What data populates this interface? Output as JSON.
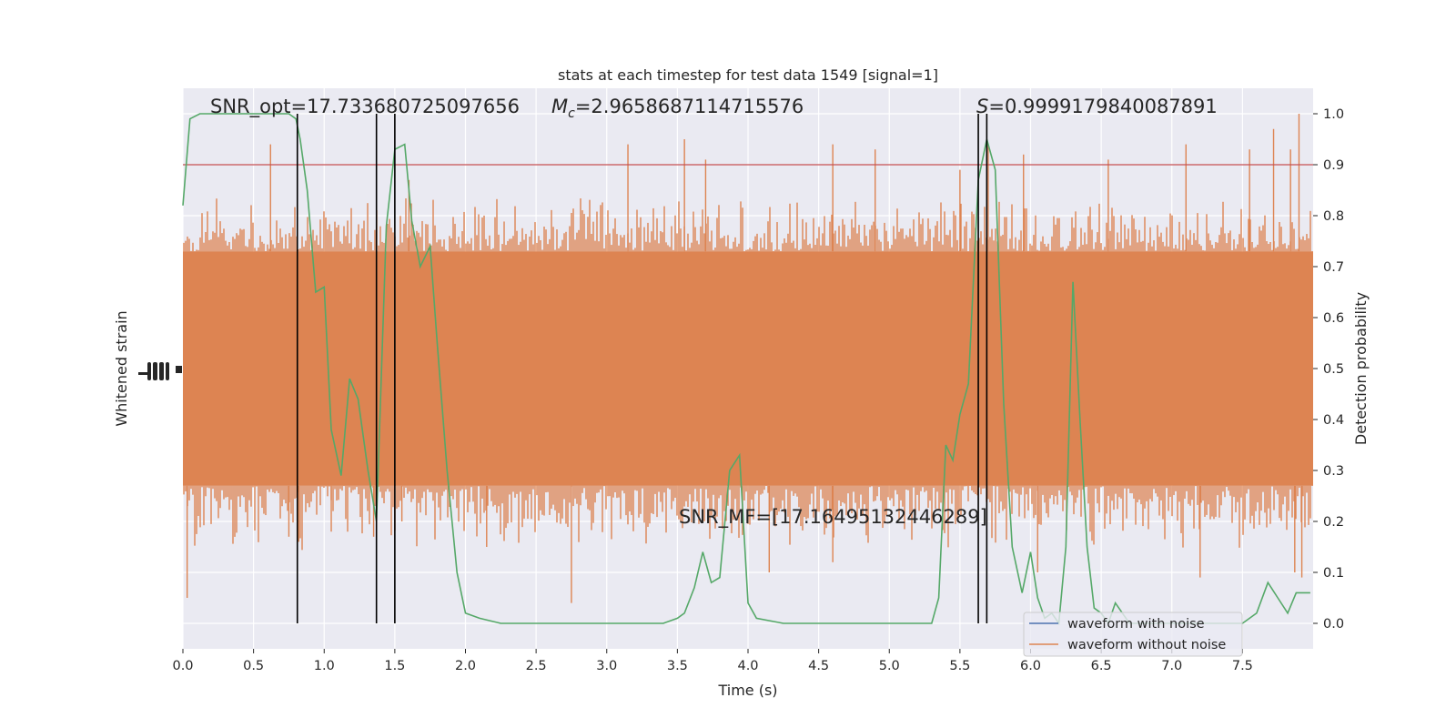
{
  "chart_data": {
    "type": "line",
    "title": "stats at each timestep for test data 1549 [signal=1]",
    "xlabel": "Time (s)",
    "ylabel_left": "Whitened strain",
    "ylabel_right": "Detection probability",
    "xlim": [
      0.0,
      8.0
    ],
    "ylim_right": [
      -0.05,
      1.05
    ],
    "x_ticks": [
      "0.0",
      "0.5",
      "1.0",
      "1.5",
      "2.0",
      "2.5",
      "3.0",
      "3.5",
      "4.0",
      "4.5",
      "5.0",
      "5.5",
      "6.0",
      "6.5",
      "7.0",
      "7.5"
    ],
    "y_ticks_right": [
      "0.0",
      "0.1",
      "0.2",
      "0.3",
      "0.4",
      "0.5",
      "0.6",
      "0.7",
      "0.8",
      "0.9",
      "1.0"
    ],
    "grid": true,
    "legend_position": "lower-right",
    "annotations": {
      "snr_opt": "SNR_opt=17.733680725097656",
      "mc_symbol": "M",
      "mc_sub": "c",
      "mc_value": "=2.9658687114715576",
      "s_symbol": "S",
      "s_value": "=0.9999179840087891",
      "snr_mf": "SNR_MF=[17.16495132446289]"
    },
    "threshold": 0.9,
    "vlines": [
      0.81,
      1.37,
      1.5,
      5.63,
      5.69
    ],
    "series": [
      {
        "name": "waveform with noise",
        "color": "#4c72b0",
        "axis": "left",
        "note_visual": "hidden behind orange trace"
      },
      {
        "name": "waveform without noise",
        "color": "#dd8452",
        "axis": "left",
        "band_upper": 0.73,
        "band_lower": 0.27,
        "spikes": [
          {
            "x": 0.03,
            "lo": 0.05
          },
          {
            "x": 0.62,
            "hi": 0.94
          },
          {
            "x": 0.75,
            "lo": 0.17
          },
          {
            "x": 0.82,
            "lo": 0.16
          },
          {
            "x": 1.05,
            "lo": 0.18
          },
          {
            "x": 1.35,
            "lo": 0.17
          },
          {
            "x": 1.55,
            "lo": 0.2
          },
          {
            "x": 1.6,
            "hi": 0.87
          },
          {
            "x": 2.15,
            "lo": 0.15
          },
          {
            "x": 2.75,
            "lo": 0.04
          },
          {
            "x": 3.15,
            "hi": 0.94
          },
          {
            "x": 3.55,
            "hi": 0.95
          },
          {
            "x": 3.7,
            "hi": 0.91
          },
          {
            "x": 4.15,
            "lo": 0.1
          },
          {
            "x": 4.6,
            "hi": 0.94
          },
          {
            "x": 4.6,
            "lo": 0.12
          },
          {
            "x": 4.9,
            "hi": 0.93
          },
          {
            "x": 5.5,
            "hi": 0.89
          },
          {
            "x": 5.7,
            "hi": 0.94
          },
          {
            "x": 5.95,
            "hi": 0.92
          },
          {
            "x": 6.05,
            "lo": 0.1
          },
          {
            "x": 6.55,
            "hi": 0.91
          },
          {
            "x": 7.1,
            "hi": 0.94
          },
          {
            "x": 7.2,
            "lo": 0.09
          },
          {
            "x": 7.55,
            "hi": 0.93
          },
          {
            "x": 7.72,
            "hi": 0.97
          },
          {
            "x": 7.84,
            "hi": 0.93
          },
          {
            "x": 7.87,
            "lo": 0.1
          },
          {
            "x": 7.9,
            "hi": 1.0
          },
          {
            "x": 7.92,
            "lo": 0.09
          }
        ]
      },
      {
        "name": "",
        "color": "#55a868",
        "axis": "right",
        "x": [
          0.0,
          0.05,
          0.12,
          0.2,
          0.3,
          0.4,
          0.5,
          0.6,
          0.7,
          0.75,
          0.8,
          0.83,
          0.88,
          0.94,
          1.0,
          1.05,
          1.12,
          1.18,
          1.24,
          1.31,
          1.37,
          1.44,
          1.5,
          1.57,
          1.62,
          1.68,
          1.75,
          1.8,
          1.87,
          1.94,
          2.0,
          2.1,
          2.25,
          2.5,
          2.75,
          3.0,
          3.25,
          3.4,
          3.5,
          3.55,
          3.62,
          3.68,
          3.74,
          3.8,
          3.87,
          3.94,
          4.0,
          4.06,
          4.25,
          4.5,
          4.75,
          5.0,
          5.2,
          5.3,
          5.35,
          5.4,
          5.45,
          5.5,
          5.56,
          5.63,
          5.69,
          5.75,
          5.81,
          5.87,
          5.94,
          6.0,
          6.05,
          6.1,
          6.15,
          6.2,
          6.25,
          6.3,
          6.35,
          6.4,
          6.45,
          6.5,
          6.55,
          6.6,
          6.7,
          6.8,
          7.0,
          7.2,
          7.4,
          7.5,
          7.6,
          7.68,
          7.75,
          7.82,
          7.88,
          7.94,
          7.98
        ],
        "values": [
          0.82,
          0.99,
          1.0,
          1.0,
          1.0,
          1.0,
          1.0,
          1.0,
          1.0,
          1.0,
          0.99,
          0.95,
          0.85,
          0.65,
          0.66,
          0.38,
          0.29,
          0.48,
          0.44,
          0.3,
          0.2,
          0.78,
          0.93,
          0.94,
          0.79,
          0.7,
          0.74,
          0.55,
          0.3,
          0.1,
          0.02,
          0.01,
          0.0,
          0.0,
          0.0,
          0.0,
          0.0,
          0.0,
          0.01,
          0.02,
          0.07,
          0.14,
          0.08,
          0.09,
          0.3,
          0.33,
          0.04,
          0.01,
          0.0,
          0.0,
          0.0,
          0.0,
          0.0,
          0.0,
          0.05,
          0.35,
          0.32,
          0.41,
          0.47,
          0.87,
          0.95,
          0.89,
          0.43,
          0.15,
          0.06,
          0.14,
          0.05,
          0.01,
          0.02,
          0.0,
          0.15,
          0.67,
          0.4,
          0.15,
          0.03,
          0.02,
          0.0,
          0.04,
          0.0,
          0.0,
          0.0,
          0.0,
          0.0,
          0.0,
          0.02,
          0.08,
          0.05,
          0.02,
          0.06,
          0.06,
          0.06
        ]
      }
    ],
    "threshold_color": "#c44e52"
  }
}
